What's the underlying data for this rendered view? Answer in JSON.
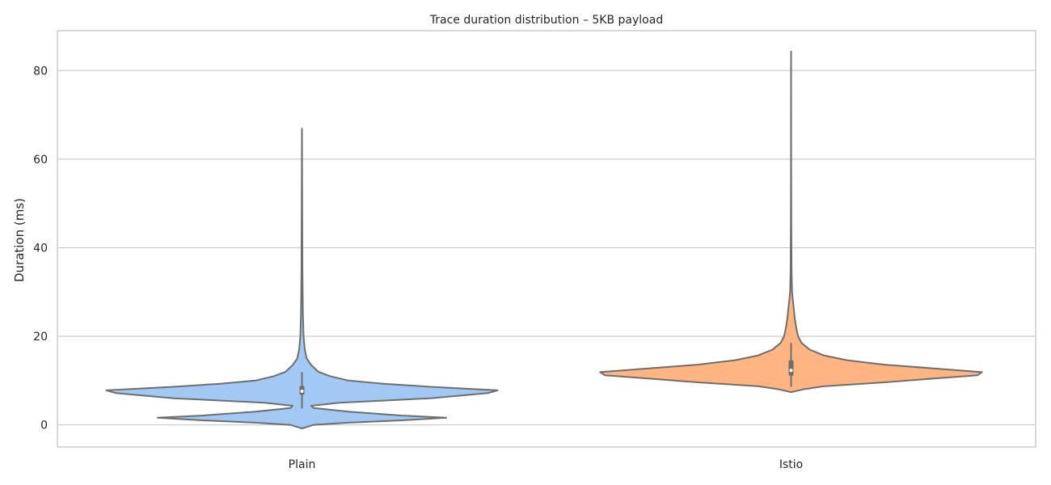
{
  "chart_data": {
    "type": "violin",
    "title": "Trace duration distribution – 5KB payload",
    "xlabel": "",
    "ylabel": "Duration (ms)",
    "ylim": [
      -5,
      89
    ],
    "yticks": [
      0,
      20,
      40,
      60,
      80
    ],
    "grid": true,
    "categories": [
      "Plain",
      "Istio"
    ],
    "colors": {
      "Plain": "#a1c9f4",
      "Istio": "#ffb482",
      "edge": "#6e6e6e",
      "inner_box": "#6e6e6e",
      "median": "#ffffff"
    },
    "series": [
      {
        "category": "Plain",
        "min": -0.8,
        "q1": 6.8,
        "median": 7.6,
        "q3": 8.8,
        "whisker_low": 3.7,
        "whisker_high": 11.9,
        "max": 66.9,
        "density": [
          [
            -0.8,
            0.0
          ],
          [
            0.0,
            0.05
          ],
          [
            0.5,
            0.2
          ],
          [
            1.0,
            0.42
          ],
          [
            1.6,
            0.62
          ],
          [
            2.1,
            0.43
          ],
          [
            3.0,
            0.2
          ],
          [
            3.8,
            0.05
          ],
          [
            4.3,
            0.04
          ],
          [
            5.0,
            0.16
          ],
          [
            6.0,
            0.55
          ],
          [
            7.2,
            0.8
          ],
          [
            7.8,
            0.84
          ],
          [
            8.6,
            0.55
          ],
          [
            9.3,
            0.35
          ],
          [
            10.0,
            0.2
          ],
          [
            11.0,
            0.12
          ],
          [
            12.0,
            0.07
          ],
          [
            13.5,
            0.04
          ],
          [
            15.0,
            0.02
          ],
          [
            17.0,
            0.012
          ],
          [
            20.0,
            0.007
          ],
          [
            25.0,
            0.004
          ],
          [
            35.0,
            0.002
          ],
          [
            50.0,
            0.001
          ],
          [
            66.9,
            0.0
          ]
        ]
      },
      {
        "category": "Istio",
        "min": 7.4,
        "q1": 11.1,
        "median": 12.3,
        "q3": 14.6,
        "whisker_low": 8.6,
        "whisker_high": 18.5,
        "max": 84.3,
        "density": [
          [
            7.4,
            0.0
          ],
          [
            8.0,
            0.05
          ],
          [
            8.7,
            0.14
          ],
          [
            9.6,
            0.4
          ],
          [
            10.5,
            0.62
          ],
          [
            11.2,
            0.8
          ],
          [
            11.9,
            0.82
          ],
          [
            12.8,
            0.6
          ],
          [
            13.6,
            0.4
          ],
          [
            14.6,
            0.24
          ],
          [
            15.7,
            0.14
          ],
          [
            17.0,
            0.08
          ],
          [
            18.5,
            0.045
          ],
          [
            20.0,
            0.03
          ],
          [
            22.0,
            0.022
          ],
          [
            24.0,
            0.016
          ],
          [
            26.0,
            0.012
          ],
          [
            28.0,
            0.008
          ],
          [
            30.0,
            0.004
          ],
          [
            35.0,
            0.002
          ],
          [
            45.0,
            0.001
          ],
          [
            60.0,
            0.0005
          ],
          [
            84.3,
            0.0
          ]
        ]
      }
    ]
  }
}
